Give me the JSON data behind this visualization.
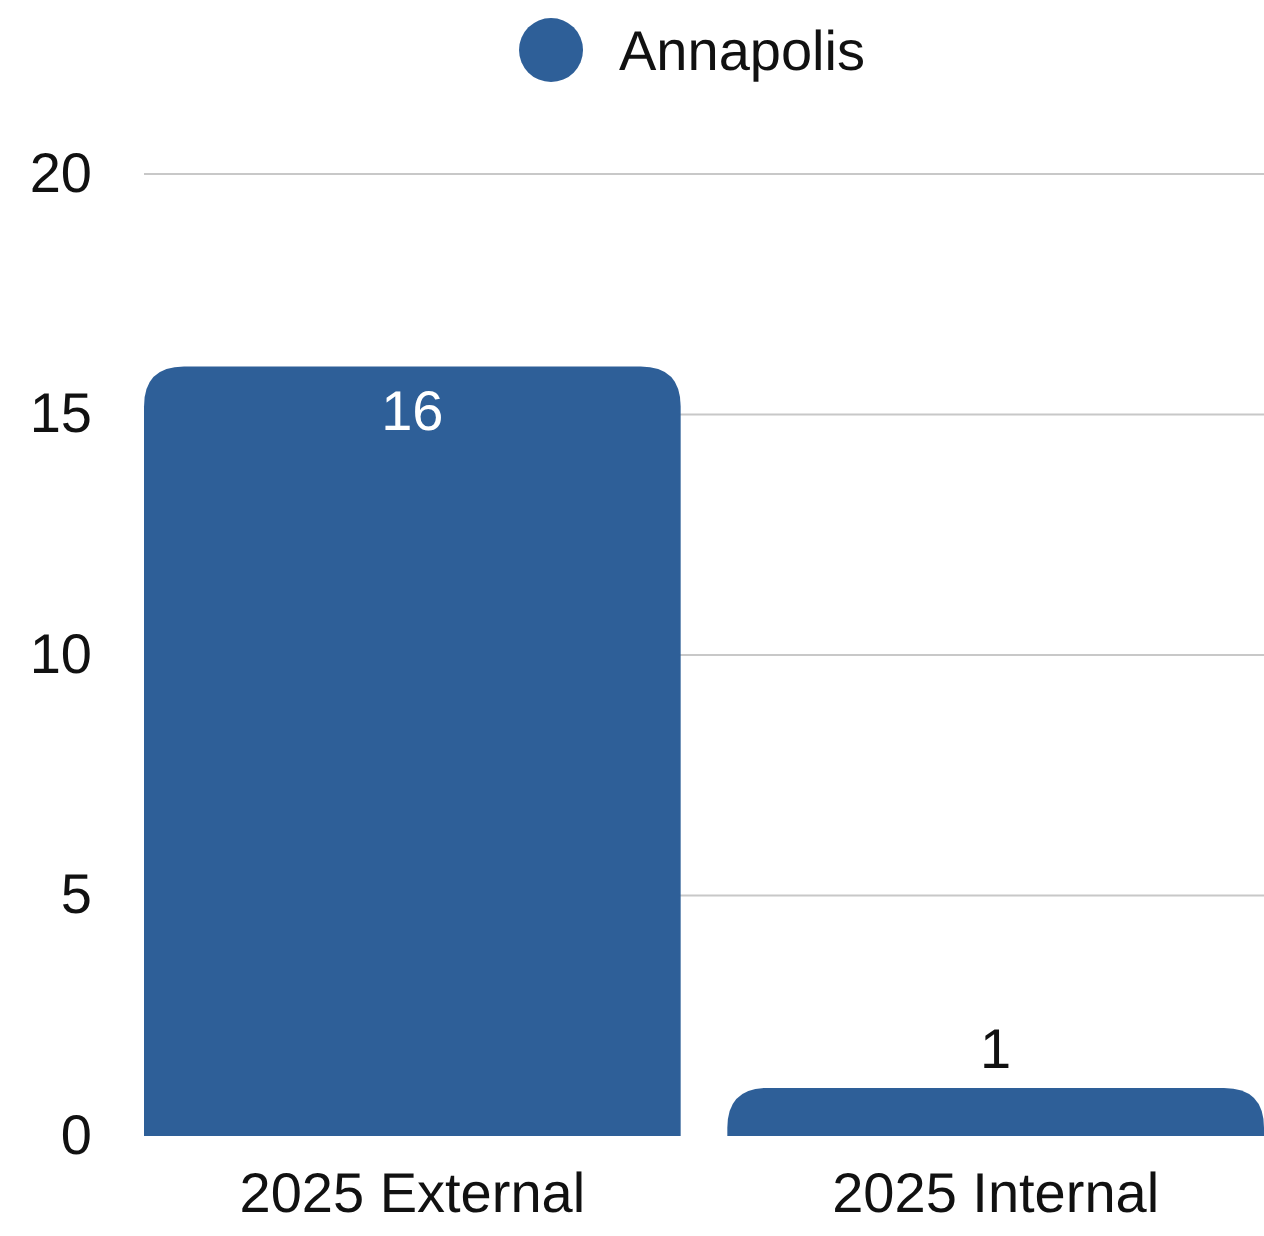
{
  "chart_data": {
    "type": "bar",
    "categories": [
      "2025 External",
      "2025 Internal"
    ],
    "series": [
      {
        "name": "Annapolis",
        "color": "#2e5f98",
        "values": [
          16,
          1
        ]
      }
    ],
    "ylim": [
      0,
      20
    ],
    "yticks": [
      0,
      5,
      10,
      15,
      20
    ],
    "grid": "y",
    "legend": "top",
    "data_labels": true
  }
}
